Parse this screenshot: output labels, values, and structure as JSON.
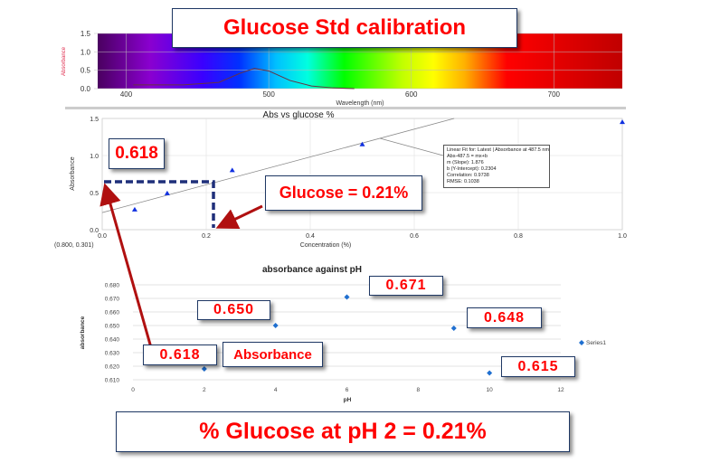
{
  "title": "Glucose Std calibration",
  "spectrum": {
    "ylabel": "Absorbance",
    "xlabel": "Wavelength (nm)",
    "y_ticks": [
      "0.0",
      "0.5",
      "1.0",
      "1.5"
    ],
    "x_ticks": [
      "400",
      "500",
      "600",
      "700"
    ]
  },
  "chart_data": [
    {
      "type": "line",
      "title": "",
      "xlabel": "Wavelength (nm)",
      "ylabel": "Absorbance",
      "xlim": [
        380,
        748
      ],
      "ylim": [
        0,
        1.5
      ],
      "x": [
        405,
        440,
        465,
        480,
        490,
        500,
        515,
        530,
        545,
        560
      ],
      "y": [
        0.1,
        0.1,
        0.17,
        0.42,
        0.55,
        0.48,
        0.22,
        0.07,
        0.02,
        0.0
      ]
    },
    {
      "type": "scatter",
      "title": "Abs vs glucose  %",
      "xlabel": "Concentration (%)",
      "ylabel": "Absorbance",
      "xlim": [
        0,
        1.0
      ],
      "ylim": [
        0,
        1.5
      ],
      "x_ticks": [
        "0.0",
        "0.2",
        "0.4",
        "0.6",
        "0.8",
        "1.0"
      ],
      "y_ticks": [
        "0.0",
        "0.5",
        "1.0",
        "1.5"
      ],
      "x": [
        0.0625,
        0.125,
        0.25,
        0.5,
        1.0
      ],
      "y": [
        0.27,
        0.49,
        0.8,
        1.15,
        1.45
      ],
      "fit": {
        "slope": 1.876,
        "intercept": 0.2304
      },
      "coord_readout": "(0.800, 0.301)",
      "fit_box": [
        "Linear Fit for: Latest | Absorbance at 487.5 nm",
        "Abs-487.5 = mx+b",
        "m (Slope): 1.876",
        "b (Y-Intercept): 0.2304",
        "Correlation: 0.9738",
        "RMSE: 0.1038"
      ]
    },
    {
      "type": "scatter",
      "title": "absorbance against pH",
      "xlabel": "pH",
      "ylabel": "absorbance",
      "xlim": [
        0,
        12
      ],
      "ylim": [
        0.61,
        0.68
      ],
      "x_ticks": [
        "0",
        "2",
        "4",
        "6",
        "8",
        "10",
        "12"
      ],
      "y_ticks": [
        "0.610",
        "0.620",
        "0.630",
        "0.640",
        "0.650",
        "0.660",
        "0.670",
        "0.680"
      ],
      "legend": "Series1",
      "legend_position": "right",
      "x": [
        2,
        4,
        6,
        9,
        10
      ],
      "y": [
        0.618,
        0.65,
        0.671,
        0.648,
        0.615
      ]
    }
  ],
  "callouts": {
    "abs_618_top": "0.618",
    "glucose": "Glucose = 0.21%",
    "v671": "0.671",
    "v650": "0.650",
    "v648": "0.648",
    "v618": "0.618",
    "absorbance": "Absorbance",
    "v615": "0.615",
    "result": "% Glucose at pH 2 = 0.21%"
  },
  "colors": {
    "callout_text": "#ff0000",
    "arrow": "#b01010",
    "dash": "#1f2f7a",
    "point": "#1f6fd0"
  }
}
